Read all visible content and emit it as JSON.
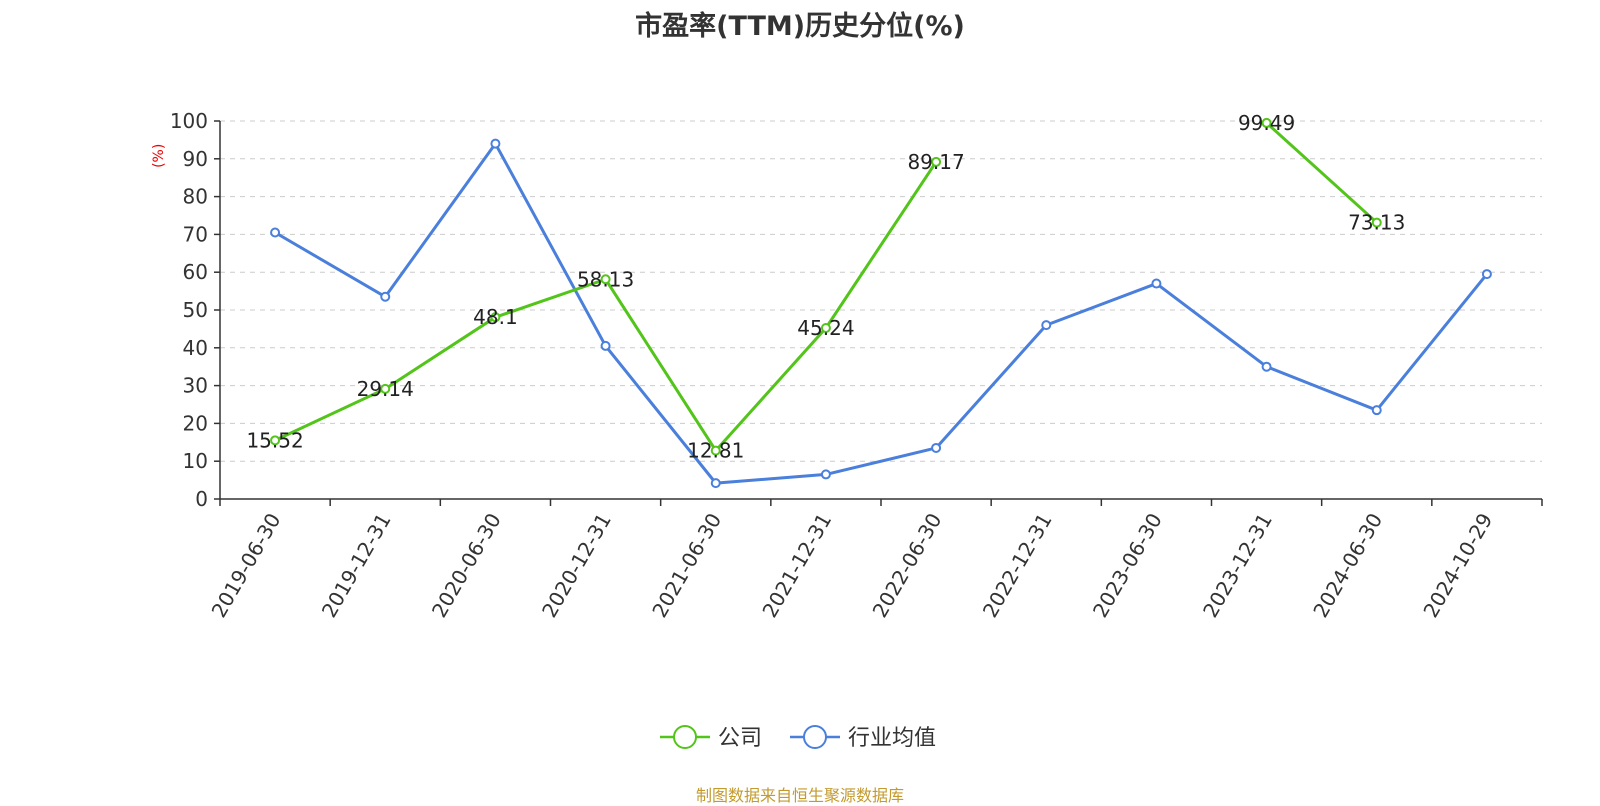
{
  "title": "市盈率(TTM)历史分位(%)",
  "source": "制图数据来自恒生聚源数据库",
  "chart_data": {
    "type": "line",
    "title": "市盈率(TTM)历史分位(%)",
    "ylabel": "(%)",
    "ylim": [
      0,
      100
    ],
    "yticks": [
      0,
      10,
      20,
      30,
      40,
      50,
      60,
      70,
      80,
      90,
      100
    ],
    "categories": [
      "2019-06-30",
      "2019-12-31",
      "2020-06-30",
      "2020-12-31",
      "2021-06-30",
      "2021-12-31",
      "2022-06-30",
      "2022-12-31",
      "2023-06-30",
      "2023-12-31",
      "2024-06-30",
      "2024-10-29"
    ],
    "grid": true,
    "legend_position": "bottom-center",
    "series": [
      {
        "name": "公司",
        "color": "#52c41a",
        "show_labels": true,
        "values": [
          15.52,
          29.14,
          48.1,
          58.13,
          12.81,
          45.24,
          89.17,
          null,
          null,
          99.49,
          73.13,
          null
        ]
      },
      {
        "name": "行业均值",
        "color": "#4a7fdc",
        "show_labels": false,
        "values": [
          70.5,
          53.5,
          94.0,
          40.5,
          4.2,
          6.5,
          13.5,
          46.0,
          57.0,
          35.0,
          23.5,
          59.5
        ]
      }
    ]
  }
}
